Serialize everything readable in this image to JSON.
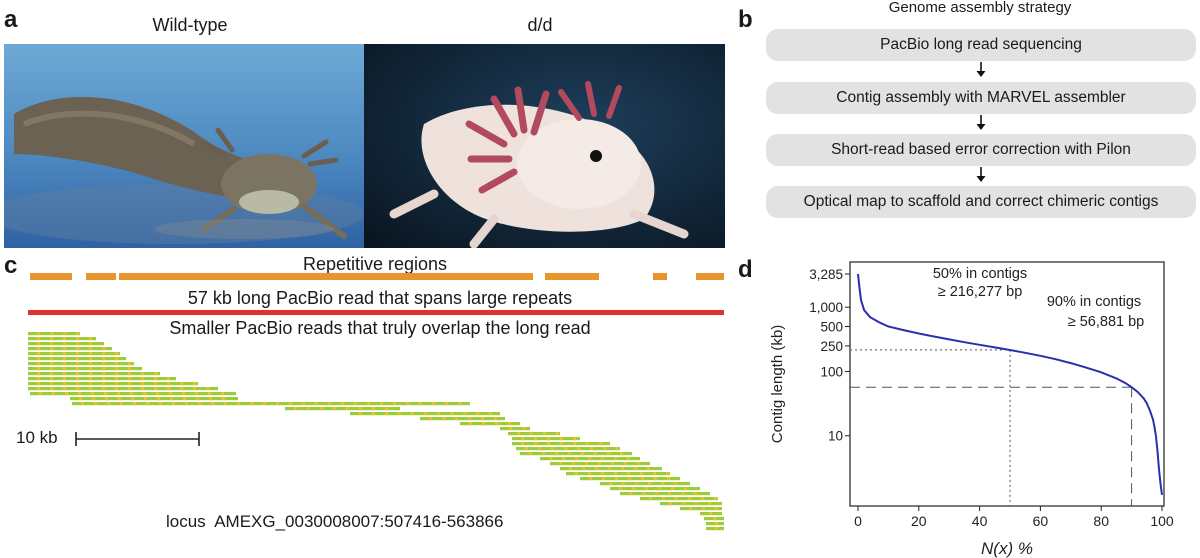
{
  "panel_a": {
    "letter": "a",
    "left_caption": "Wild-type",
    "right_caption": "d/d"
  },
  "panel_b": {
    "letter": "b",
    "title": "Genome assembly strategy",
    "steps": [
      "PacBio long read sequencing",
      "Contig assembly with MARVEL assembler",
      "Short-read based error correction with Pilon",
      "Optical map to scaffold and correct chimeric contigs"
    ],
    "colors": {
      "box": "#e2e2e2",
      "arrow": "#111111"
    }
  },
  "panel_c": {
    "letter": "c",
    "repetitive_label": "Repetitive regions",
    "long_read_label": "57 kb long PacBio read that spans large repeats",
    "small_reads_label": "Smaller PacBio reads that truly overlap the long read",
    "scale_label": "10 kb",
    "locus_label": "locus  AMEXG_0030008007:507416-563866",
    "colors": {
      "repeat": "#e8952e",
      "long_read": "#e0322e",
      "short_read": "#9ccc3a",
      "short_read_spot": "#e6c22c"
    }
  },
  "panel_d": {
    "letter": "d",
    "colors": {
      "curve": "#2a2fb0",
      "guide": "#555555"
    }
  },
  "chart_data": {
    "type": "line",
    "xlabel": "N(x) %",
    "ylabel": "Contig length (kb)",
    "xlim": [
      0,
      100
    ],
    "y_scale": "log",
    "ylim": [
      1,
      3285
    ],
    "x_ticks": [
      0,
      20,
      40,
      60,
      80,
      100
    ],
    "y_ticks": [
      {
        "value": 10,
        "label": "10"
      },
      {
        "value": 100,
        "label": "100"
      },
      {
        "value": 250,
        "label": "250"
      },
      {
        "value": 500,
        "label": "500"
      },
      {
        "value": 1000,
        "label": "1,000"
      },
      {
        "value": 3285,
        "label": "3,285"
      }
    ],
    "series": [
      {
        "x": [
          0,
          0.5,
          1,
          2,
          4,
          7,
          10,
          15,
          20,
          25,
          30,
          35,
          40,
          45,
          50,
          55,
          60,
          65,
          70,
          75,
          80,
          85,
          88,
          90,
          92,
          94,
          95,
          96,
          97,
          97.5,
          98,
          98.5,
          99,
          99.5,
          100
        ],
        "y": [
          3285,
          2000,
          1300,
          900,
          700,
          580,
          500,
          440,
          390,
          350,
          315,
          285,
          260,
          237,
          216,
          195,
          175,
          155,
          135,
          115,
          97,
          78,
          66,
          57,
          48,
          38,
          32,
          25,
          18,
          14,
          10,
          6,
          3,
          1.8,
          1.2
        ]
      }
    ],
    "annotations": [
      {
        "line1": "50% in contigs",
        "line2": "≥ 216,277 bp",
        "x": 50,
        "y": 216.277
      },
      {
        "line1": "90% in contigs",
        "line2": "≥ 56,881 bp",
        "x": 90,
        "y": 56.881
      }
    ],
    "grid": false
  }
}
